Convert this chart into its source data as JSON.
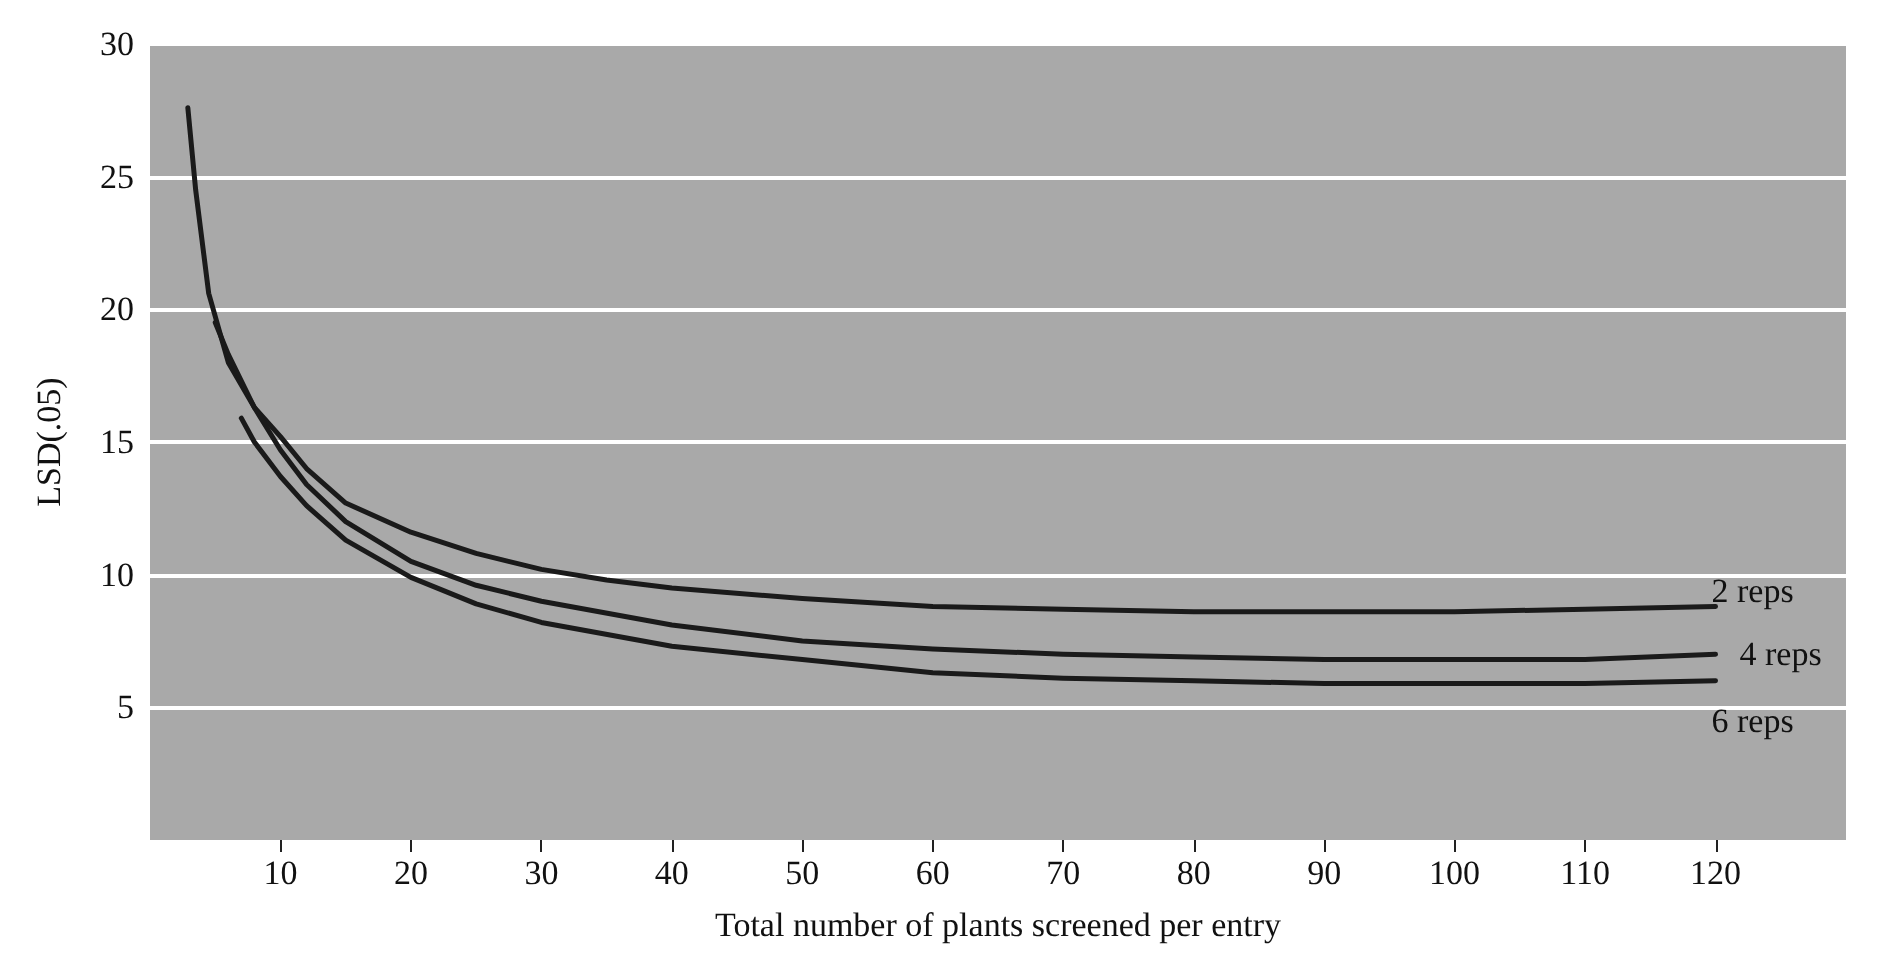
{
  "chart_data": {
    "type": "line",
    "xlabel": "Total number of plants screened per entry",
    "ylabel": "LSD(.05)",
    "xlim": [
      0,
      130
    ],
    "xticks": [
      10,
      20,
      30,
      40,
      50,
      60,
      70,
      80,
      90,
      100,
      110,
      120
    ],
    "ylim": [
      0,
      30
    ],
    "yticks": [
      5,
      10,
      15,
      20,
      25,
      30
    ],
    "grid": "y",
    "legend": false,
    "marker": "none",
    "series": [
      {
        "name": "2 reps",
        "color": "#1a1a1a",
        "x": [
          2.9,
          3.5,
          4.5,
          6,
          8,
          10,
          12,
          15,
          20,
          25,
          30,
          35,
          40,
          50,
          60,
          70,
          80,
          90,
          100,
          110,
          120
        ],
        "values": [
          27.6,
          24.5,
          20.6,
          18,
          16.3,
          15.2,
          14,
          12.7,
          11.6,
          10.8,
          10.2,
          9.8,
          9.5,
          9.1,
          8.8,
          8.7,
          8.6,
          8.6,
          8.6,
          8.7,
          8.8
        ]
      },
      {
        "name": "4 reps",
        "color": "#1a1a1a",
        "x": [
          5,
          6,
          8,
          10,
          12,
          15,
          20,
          25,
          30,
          40,
          50,
          60,
          70,
          80,
          90,
          100,
          110,
          120
        ],
        "values": [
          19.5,
          18.3,
          16.3,
          14.7,
          13.4,
          12,
          10.5,
          9.6,
          9,
          8.1,
          7.5,
          7.2,
          7,
          6.9,
          6.8,
          6.8,
          6.8,
          7
        ]
      },
      {
        "name": "6 reps",
        "color": "#1a1a1a",
        "x": [
          7,
          8,
          10,
          12,
          15,
          20,
          25,
          30,
          40,
          50,
          60,
          70,
          80,
          90,
          100,
          110,
          120
        ],
        "values": [
          15.9,
          15,
          13.7,
          12.6,
          11.3,
          9.9,
          8.9,
          8.2,
          7.3,
          6.8,
          6.3,
          6.1,
          6,
          5.9,
          5.9,
          5.9,
          6
        ]
      }
    ]
  }
}
